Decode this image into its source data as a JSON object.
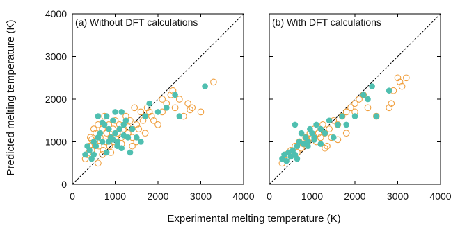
{
  "chart_data": {
    "type": "scatter",
    "xlabel": "Experimental melting temperature (K)",
    "ylabel": "Predicted melting temperature (K)",
    "xlim": [
      0,
      4000
    ],
    "ylim": [
      0,
      4000
    ],
    "xticks": [
      "0",
      "1000",
      "2000",
      "3000",
      "4000"
    ],
    "yticks": [
      "0",
      "1000",
      "2000",
      "3000",
      "4000"
    ],
    "grid": false,
    "legend": "none",
    "colors": {
      "open": "#f0a040",
      "filled": "#4fbfb0",
      "diagonal": "#000000"
    },
    "panels": [
      {
        "title": "(a) Without DFT calculations",
        "series": [
          {
            "marker": "open-circle",
            "points": [
              [
                300,
                600
              ],
              [
                350,
                700
              ],
              [
                400,
                900
              ],
              [
                420,
                1100
              ],
              [
                450,
                800
              ],
              [
                500,
                1300
              ],
              [
                520,
                1000
              ],
              [
                550,
                1200
              ],
              [
                600,
                1400
              ],
              [
                620,
                900
              ],
              [
                650,
                1100
              ],
              [
                700,
                1300
              ],
              [
                720,
                800
              ],
              [
                750,
                1600
              ],
              [
                780,
                1000
              ],
              [
                800,
                1200
              ],
              [
                850,
                1400
              ],
              [
                870,
                900
              ],
              [
                900,
                1100
              ],
              [
                950,
                1300
              ],
              [
                980,
                1000
              ],
              [
                1000,
                1500
              ],
              [
                1050,
                1200
              ],
              [
                1100,
                1400
              ],
              [
                1150,
                1100
              ],
              [
                1200,
                1300
              ],
              [
                1250,
                1600
              ],
              [
                1300,
                1200
              ],
              [
                1350,
                1500
              ],
              [
                1400,
                1100
              ],
              [
                1450,
                1800
              ],
              [
                1500,
                1400
              ],
              [
                1550,
                1300
              ],
              [
                1600,
                1700
              ],
              [
                1650,
                1500
              ],
              [
                1700,
                1200
              ],
              [
                1800,
                1700
              ],
              [
                1900,
                1500
              ],
              [
                2000,
                1400
              ],
              [
                2100,
                1700
              ],
              [
                2200,
                1900
              ],
              [
                2300,
                2100
              ],
              [
                2400,
                1800
              ],
              [
                2500,
                2000
              ],
              [
                2600,
                1600
              ],
              [
                2700,
                1900
              ],
              [
                2800,
                1800
              ],
              [
                3000,
                1700
              ],
              [
                3300,
                2400
              ],
              [
                2350,
                2200
              ],
              [
                2750,
                1750
              ],
              [
                2100,
                2000
              ],
              [
                1850,
                1600
              ],
              [
                1750,
                1800
              ],
              [
                1300,
                1350
              ],
              [
                450,
                1050
              ],
              [
                380,
                750
              ],
              [
                600,
                500
              ],
              [
                700,
                700
              ],
              [
                900,
                750
              ],
              [
                1150,
                950
              ],
              [
                1500,
                1000
              ],
              [
                1400,
                900
              ]
            ]
          },
          {
            "marker": "filled-circle",
            "points": [
              [
                300,
                700
              ],
              [
                350,
                900
              ],
              [
                400,
                800
              ],
              [
                450,
                600
              ],
              [
                500,
                1000
              ],
              [
                550,
                900
              ],
              [
                600,
                1100
              ],
              [
                650,
                1200
              ],
              [
                700,
                1000
              ],
              [
                750,
                1400
              ],
              [
                800,
                1600
              ],
              [
                850,
                1300
              ],
              [
                900,
                1100
              ],
              [
                950,
                1500
              ],
              [
                1000,
                1200
              ],
              [
                1050,
                900
              ],
              [
                1100,
                1300
              ],
              [
                1150,
                1700
              ],
              [
                1200,
                1400
              ],
              [
                1250,
                1500
              ],
              [
                1300,
                1100
              ],
              [
                1400,
                1300
              ],
              [
                1500,
                1100
              ],
              [
                1600,
                1000
              ],
              [
                1700,
                1600
              ],
              [
                1800,
                1900
              ],
              [
                2000,
                1700
              ],
              [
                2200,
                1800
              ],
              [
                2400,
                2100
              ],
              [
                2500,
                1600
              ],
              [
                3100,
                2300
              ],
              [
                850,
                1000
              ],
              [
                950,
                1050
              ],
              [
                1050,
                1000
              ],
              [
                1150,
                850
              ],
              [
                1350,
                750
              ],
              [
                600,
                1600
              ],
              [
                700,
                1450
              ],
              [
                800,
                750
              ],
              [
                500,
                700
              ],
              [
                1000,
                1700
              ],
              [
                1200,
                1150
              ]
            ]
          }
        ]
      },
      {
        "title": "(b) With DFT calculations",
        "series": [
          {
            "marker": "open-circle",
            "points": [
              [
                300,
                500
              ],
              [
                350,
                600
              ],
              [
                400,
                700
              ],
              [
                450,
                650
              ],
              [
                500,
                800
              ],
              [
                550,
                700
              ],
              [
                600,
                900
              ],
              [
                650,
                750
              ],
              [
                700,
                1000
              ],
              [
                750,
                850
              ],
              [
                800,
                950
              ],
              [
                850,
                1100
              ],
              [
                900,
                1000
              ],
              [
                950,
                1200
              ],
              [
                1000,
                1100
              ],
              [
                1050,
                1300
              ],
              [
                1100,
                1000
              ],
              [
                1150,
                1200
              ],
              [
                1200,
                1100
              ],
              [
                1250,
                1400
              ],
              [
                1300,
                1200
              ],
              [
                1350,
                900
              ],
              [
                1400,
                1300
              ],
              [
                1450,
                1100
              ],
              [
                1500,
                1500
              ],
              [
                1600,
                1400
              ],
              [
                1700,
                1600
              ],
              [
                1800,
                1700
              ],
              [
                1900,
                1800
              ],
              [
                2000,
                1900
              ],
              [
                2100,
                2000
              ],
              [
                2200,
                2100
              ],
              [
                2300,
                1800
              ],
              [
                2500,
                1600
              ],
              [
                2800,
                1800
              ],
              [
                2900,
                2200
              ],
              [
                3000,
                2500
              ],
              [
                3100,
                2300
              ],
              [
                3200,
                2500
              ],
              [
                2000,
                1700
              ],
              [
                1800,
                1200
              ],
              [
                1600,
                1050
              ],
              [
                1300,
                850
              ],
              [
                2850,
                1900
              ],
              [
                3050,
                2400
              ]
            ]
          },
          {
            "marker": "filled-circle",
            "points": [
              [
                300,
                600
              ],
              [
                350,
                700
              ],
              [
                400,
                550
              ],
              [
                450,
                750
              ],
              [
                500,
                650
              ],
              [
                550,
                800
              ],
              [
                600,
                700
              ],
              [
                650,
                900
              ],
              [
                700,
                1000
              ],
              [
                750,
                1200
              ],
              [
                800,
                950
              ],
              [
                850,
                1100
              ],
              [
                900,
                1000
              ],
              [
                950,
                1300
              ],
              [
                1000,
                1200
              ],
              [
                1050,
                1100
              ],
              [
                1100,
                1400
              ],
              [
                1200,
                1300
              ],
              [
                1300,
                1200
              ],
              [
                1400,
                1500
              ],
              [
                1500,
                1100
              ],
              [
                1600,
                1400
              ],
              [
                1700,
                1600
              ],
              [
                1800,
                1400
              ],
              [
                2000,
                1600
              ],
              [
                2200,
                2100
              ],
              [
                2400,
                2300
              ],
              [
                2500,
                1600
              ],
              [
                2800,
                2200
              ],
              [
                1200,
                950
              ],
              [
                900,
                900
              ],
              [
                600,
                1400
              ],
              [
                650,
                600
              ],
              [
                2300,
                2000
              ],
              [
                1050,
                1050
              ]
            ]
          }
        ]
      }
    ]
  }
}
